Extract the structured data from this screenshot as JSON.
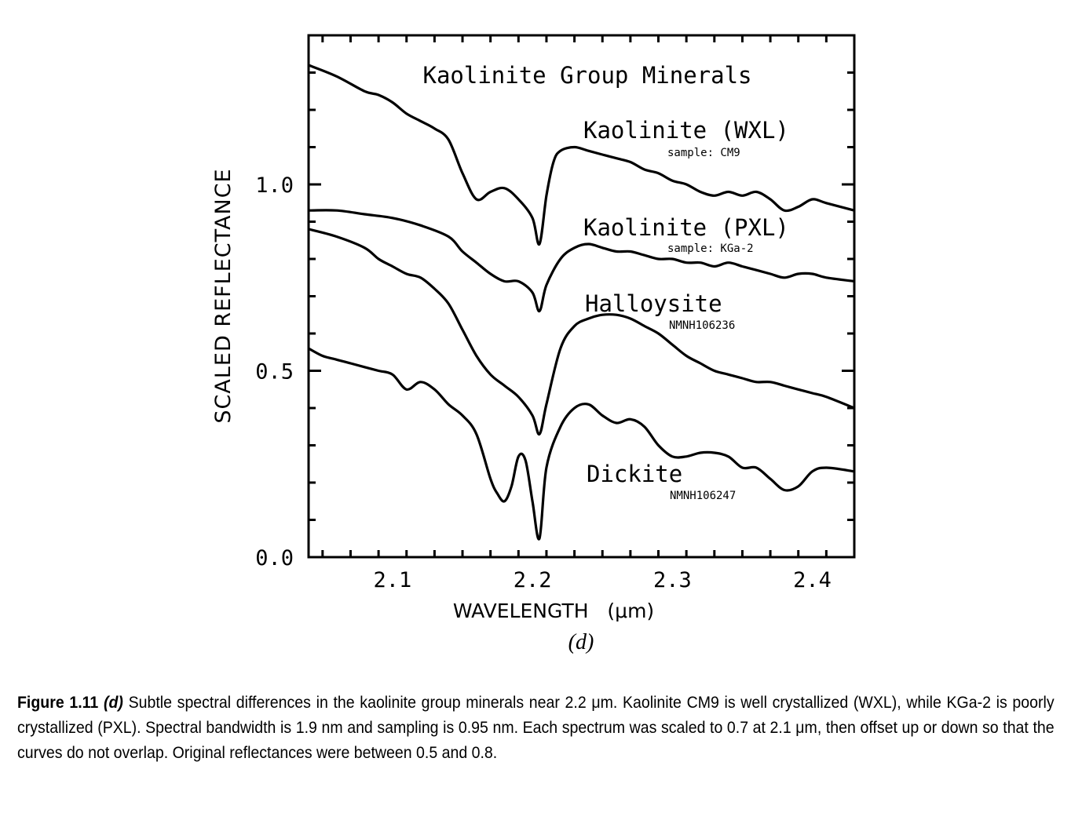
{
  "chart_data": {
    "type": "line",
    "title": "Kaolinite Group Minerals",
    "xlabel": "WAVELENGTH",
    "xlabel_unit": "(μm)",
    "ylabel": "SCALED REFLECTANCE",
    "xlim": [
      2.04,
      2.43
    ],
    "ylim": [
      0.0,
      1.4
    ],
    "x_ticks": [
      2.1,
      2.2,
      2.3,
      2.4
    ],
    "x_tick_labels": [
      "2.1",
      "2.2",
      "2.3",
      "2.4"
    ],
    "y_ticks": [
      0.0,
      0.5,
      1.0
    ],
    "y_tick_labels": [
      "0.0",
      "0.5",
      "1.0"
    ],
    "panel_label": "(d)",
    "grid": false,
    "series": [
      {
        "name": "Kaolinite (WXL)",
        "sample": "sample: CM9",
        "points": [
          [
            2.04,
            1.32
          ],
          [
            2.06,
            1.29
          ],
          [
            2.08,
            1.25
          ],
          [
            2.09,
            1.24
          ],
          [
            2.1,
            1.22
          ],
          [
            2.11,
            1.19
          ],
          [
            2.12,
            1.17
          ],
          [
            2.13,
            1.15
          ],
          [
            2.14,
            1.12
          ],
          [
            2.15,
            1.03
          ],
          [
            2.16,
            0.96
          ],
          [
            2.17,
            0.98
          ],
          [
            2.18,
            0.99
          ],
          [
            2.19,
            0.96
          ],
          [
            2.2,
            0.91
          ],
          [
            2.205,
            0.84
          ],
          [
            2.21,
            0.97
          ],
          [
            2.215,
            1.06
          ],
          [
            2.22,
            1.09
          ],
          [
            2.23,
            1.1
          ],
          [
            2.24,
            1.09
          ],
          [
            2.25,
            1.08
          ],
          [
            2.26,
            1.07
          ],
          [
            2.27,
            1.06
          ],
          [
            2.28,
            1.04
          ],
          [
            2.29,
            1.03
          ],
          [
            2.3,
            1.01
          ],
          [
            2.31,
            1.0
          ],
          [
            2.32,
            0.98
          ],
          [
            2.33,
            0.97
          ],
          [
            2.34,
            0.98
          ],
          [
            2.35,
            0.97
          ],
          [
            2.36,
            0.98
          ],
          [
            2.37,
            0.96
          ],
          [
            2.38,
            0.93
          ],
          [
            2.39,
            0.94
          ],
          [
            2.4,
            0.96
          ],
          [
            2.41,
            0.95
          ],
          [
            2.43,
            0.93
          ]
        ]
      },
      {
        "name": "Kaolinite (PXL)",
        "sample": "sample: KGa-2",
        "points": [
          [
            2.04,
            0.93
          ],
          [
            2.06,
            0.93
          ],
          [
            2.08,
            0.92
          ],
          [
            2.1,
            0.91
          ],
          [
            2.12,
            0.89
          ],
          [
            2.14,
            0.86
          ],
          [
            2.15,
            0.82
          ],
          [
            2.16,
            0.79
          ],
          [
            2.17,
            0.76
          ],
          [
            2.18,
            0.74
          ],
          [
            2.19,
            0.74
          ],
          [
            2.2,
            0.71
          ],
          [
            2.205,
            0.66
          ],
          [
            2.21,
            0.73
          ],
          [
            2.22,
            0.8
          ],
          [
            2.23,
            0.83
          ],
          [
            2.24,
            0.84
          ],
          [
            2.25,
            0.83
          ],
          [
            2.26,
            0.82
          ],
          [
            2.27,
            0.82
          ],
          [
            2.28,
            0.81
          ],
          [
            2.29,
            0.8
          ],
          [
            2.3,
            0.8
          ],
          [
            2.31,
            0.79
          ],
          [
            2.32,
            0.79
          ],
          [
            2.33,
            0.78
          ],
          [
            2.34,
            0.79
          ],
          [
            2.35,
            0.78
          ],
          [
            2.36,
            0.77
          ],
          [
            2.37,
            0.76
          ],
          [
            2.38,
            0.75
          ],
          [
            2.39,
            0.76
          ],
          [
            2.4,
            0.76
          ],
          [
            2.41,
            0.75
          ],
          [
            2.43,
            0.74
          ]
        ]
      },
      {
        "name": "Halloysite",
        "sample": "NMNH106236",
        "points": [
          [
            2.04,
            0.88
          ],
          [
            2.06,
            0.86
          ],
          [
            2.08,
            0.83
          ],
          [
            2.09,
            0.8
          ],
          [
            2.1,
            0.78
          ],
          [
            2.11,
            0.76
          ],
          [
            2.12,
            0.75
          ],
          [
            2.13,
            0.72
          ],
          [
            2.14,
            0.68
          ],
          [
            2.15,
            0.61
          ],
          [
            2.16,
            0.54
          ],
          [
            2.17,
            0.49
          ],
          [
            2.18,
            0.46
          ],
          [
            2.19,
            0.43
          ],
          [
            2.2,
            0.38
          ],
          [
            2.205,
            0.33
          ],
          [
            2.21,
            0.41
          ],
          [
            2.22,
            0.56
          ],
          [
            2.23,
            0.62
          ],
          [
            2.24,
            0.64
          ],
          [
            2.25,
            0.65
          ],
          [
            2.26,
            0.65
          ],
          [
            2.27,
            0.64
          ],
          [
            2.28,
            0.62
          ],
          [
            2.29,
            0.6
          ],
          [
            2.3,
            0.57
          ],
          [
            2.31,
            0.54
          ],
          [
            2.32,
            0.52
          ],
          [
            2.33,
            0.5
          ],
          [
            2.34,
            0.49
          ],
          [
            2.35,
            0.48
          ],
          [
            2.36,
            0.47
          ],
          [
            2.37,
            0.47
          ],
          [
            2.38,
            0.46
          ],
          [
            2.39,
            0.45
          ],
          [
            2.4,
            0.44
          ],
          [
            2.41,
            0.43
          ],
          [
            2.43,
            0.4
          ]
        ]
      },
      {
        "name": "Dickite",
        "sample": "NMNH106247",
        "points": [
          [
            2.04,
            0.56
          ],
          [
            2.05,
            0.54
          ],
          [
            2.06,
            0.53
          ],
          [
            2.07,
            0.52
          ],
          [
            2.08,
            0.51
          ],
          [
            2.09,
            0.5
          ],
          [
            2.1,
            0.49
          ],
          [
            2.11,
            0.45
          ],
          [
            2.12,
            0.47
          ],
          [
            2.13,
            0.45
          ],
          [
            2.14,
            0.41
          ],
          [
            2.15,
            0.38
          ],
          [
            2.16,
            0.33
          ],
          [
            2.17,
            0.21
          ],
          [
            2.175,
            0.17
          ],
          [
            2.18,
            0.15
          ],
          [
            2.185,
            0.19
          ],
          [
            2.19,
            0.27
          ],
          [
            2.195,
            0.26
          ],
          [
            2.2,
            0.15
          ],
          [
            2.205,
            0.05
          ],
          [
            2.21,
            0.24
          ],
          [
            2.22,
            0.35
          ],
          [
            2.23,
            0.4
          ],
          [
            2.24,
            0.41
          ],
          [
            2.25,
            0.38
          ],
          [
            2.26,
            0.36
          ],
          [
            2.27,
            0.37
          ],
          [
            2.28,
            0.35
          ],
          [
            2.29,
            0.3
          ],
          [
            2.3,
            0.27
          ],
          [
            2.31,
            0.27
          ],
          [
            2.32,
            0.28
          ],
          [
            2.33,
            0.28
          ],
          [
            2.34,
            0.27
          ],
          [
            2.35,
            0.24
          ],
          [
            2.36,
            0.24
          ],
          [
            2.37,
            0.21
          ],
          [
            2.38,
            0.18
          ],
          [
            2.39,
            0.19
          ],
          [
            2.4,
            0.23
          ],
          [
            2.41,
            0.24
          ],
          [
            2.43,
            0.23
          ]
        ]
      }
    ]
  },
  "caption": {
    "figure_label": "Figure 1.11",
    "panel_ref": "(d)",
    "text": " Subtle spectral differences in the kaolinite group minerals near 2.2 μm. Kaolinite CM9 is well crystallized (WXL), while KGa-2 is poorly crystallized (PXL). Spectral bandwidth is 1.9 nm and sampling is 0.95 nm. Each spectrum was scaled to 0.7 at 2.1 μm, then offset up or down so that the curves do not overlap. Original reflectances were between 0.5 and 0.8."
  }
}
